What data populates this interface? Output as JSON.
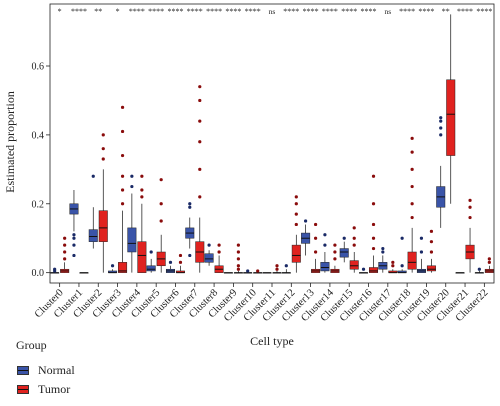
{
  "chart_data": {
    "type": "box",
    "xlabel": "Cell type",
    "ylabel": "Estimated proportion",
    "ylim": [
      -0.03,
      0.78
    ],
    "yticks": [
      "0.0",
      "0.2",
      "0.4",
      "0.6"
    ],
    "categories": [
      "Cluster0",
      "Cluster1",
      "Cluster2",
      "Cluster3",
      "Cluster4",
      "Cluster5",
      "Cluster6",
      "Cluster7",
      "Cluster8",
      "Cluster9",
      "Cluster10",
      "Cluster11",
      "Cluster12",
      "Cluster13",
      "Cluster14",
      "Cluster15",
      "Cluster16",
      "Cluster17",
      "Cluster18",
      "Cluster19",
      "Cluster20",
      "Cluster21",
      "Cluster22"
    ],
    "significance": [
      "*",
      "****",
      "**",
      "*",
      "****",
      "****",
      "****",
      "****",
      "****",
      "****",
      "****",
      "ns",
      "****",
      "****",
      "****",
      "****",
      "****",
      "ns",
      "****",
      "****",
      "**",
      "****",
      "****"
    ],
    "legend": {
      "title": "Group",
      "placement": "bottom-left"
    },
    "series": [
      {
        "name": "Normal",
        "color": "#3a54a8",
        "boxes": [
          {
            "min": 0.0,
            "q1": 0.0,
            "median": 0.0,
            "q3": 0.0,
            "max": 0.0,
            "outliers": [
              0.005,
              0.01
            ]
          },
          {
            "min": 0.12,
            "q1": 0.17,
            "median": 0.185,
            "q3": 0.2,
            "max": 0.24,
            "outliers": [
              0.05,
              0.08,
              0.1,
              0.11
            ]
          },
          {
            "min": 0.07,
            "q1": 0.09,
            "median": 0.105,
            "q3": 0.125,
            "max": 0.19,
            "outliers": [
              0.28
            ]
          },
          {
            "min": 0.0,
            "q1": 0.0,
            "median": 0.0,
            "q3": 0.005,
            "max": 0.01,
            "outliers": [
              0.02
            ]
          },
          {
            "min": 0.0,
            "q1": 0.06,
            "median": 0.085,
            "q3": 0.13,
            "max": 0.23,
            "outliers": [
              0.25,
              0.28
            ]
          },
          {
            "min": 0.0,
            "q1": 0.005,
            "median": 0.01,
            "q3": 0.02,
            "max": 0.04,
            "outliers": [
              0.06
            ]
          },
          {
            "min": 0.0,
            "q1": 0.0,
            "median": 0.005,
            "q3": 0.01,
            "max": 0.02,
            "outliers": [
              0.03
            ]
          },
          {
            "min": 0.07,
            "q1": 0.1,
            "median": 0.115,
            "q3": 0.13,
            "max": 0.16,
            "outliers": [
              0.05,
              0.19,
              0.2
            ]
          },
          {
            "min": 0.02,
            "q1": 0.03,
            "median": 0.04,
            "q3": 0.055,
            "max": 0.065,
            "outliers": [
              0.08
            ]
          },
          {
            "min": 0.0,
            "q1": 0.0,
            "median": 0.0,
            "q3": 0.0,
            "max": 0.0,
            "outliers": []
          },
          {
            "min": 0.0,
            "q1": 0.0,
            "median": 0.0,
            "q3": 0.0,
            "max": 0.0,
            "outliers": [
              0.005
            ]
          },
          {
            "min": 0.0,
            "q1": 0.0,
            "median": 0.0,
            "q3": 0.0,
            "max": 0.0,
            "outliers": []
          },
          {
            "min": 0.0,
            "q1": 0.0,
            "median": 0.0,
            "q3": 0.0,
            "max": 0.01,
            "outliers": [
              0.02
            ]
          },
          {
            "min": 0.05,
            "q1": 0.085,
            "median": 0.1,
            "q3": 0.115,
            "max": 0.14,
            "outliers": [
              0.15
            ]
          },
          {
            "min": 0.0,
            "q1": 0.005,
            "median": 0.015,
            "q3": 0.03,
            "max": 0.06,
            "outliers": [
              0.08,
              0.11
            ]
          },
          {
            "min": 0.03,
            "q1": 0.045,
            "median": 0.06,
            "q3": 0.07,
            "max": 0.09,
            "outliers": [
              0.1
            ]
          },
          {
            "min": 0.0,
            "q1": 0.0,
            "median": 0.0,
            "q3": 0.0,
            "max": 0.0,
            "outliers": [
              0.01
            ]
          },
          {
            "min": 0.0,
            "q1": 0.01,
            "median": 0.02,
            "q3": 0.03,
            "max": 0.05,
            "outliers": [
              0.07,
              0.06
            ]
          },
          {
            "min": 0.0,
            "q1": 0.0,
            "median": 0.0,
            "q3": 0.005,
            "max": 0.01,
            "outliers": [
              0.02,
              0.1
            ]
          },
          {
            "min": 0.0,
            "q1": 0.0,
            "median": 0.005,
            "q3": 0.01,
            "max": 0.04,
            "outliers": [
              0.06,
              0.1
            ]
          },
          {
            "min": 0.13,
            "q1": 0.19,
            "median": 0.22,
            "q3": 0.25,
            "max": 0.31,
            "outliers": [
              0.4,
              0.42,
              0.44,
              0.45
            ]
          },
          {
            "min": 0.0,
            "q1": 0.0,
            "median": 0.0,
            "q3": 0.0,
            "max": 0.0,
            "outliers": []
          },
          {
            "min": 0.0,
            "q1": 0.0,
            "median": 0.0,
            "q3": 0.0,
            "max": 0.005,
            "outliers": [
              0.01
            ]
          }
        ]
      },
      {
        "name": "Tumor",
        "color": "#e0221f",
        "boxes": [
          {
            "min": 0.0,
            "q1": 0.0,
            "median": 0.005,
            "q3": 0.01,
            "max": 0.03,
            "outliers": [
              0.04,
              0.06,
              0.08,
              0.1
            ]
          },
          {
            "min": 0.0,
            "q1": 0.0,
            "median": 0.0,
            "q3": 0.0,
            "max": 0.0,
            "outliers": []
          },
          {
            "min": 0.0,
            "q1": 0.09,
            "median": 0.13,
            "q3": 0.18,
            "max": 0.3,
            "outliers": [
              0.33,
              0.36,
              0.4
            ]
          },
          {
            "min": 0.0,
            "q1": 0.0,
            "median": 0.005,
            "q3": 0.03,
            "max": 0.18,
            "outliers": [
              0.2,
              0.24,
              0.28,
              0.34,
              0.41,
              0.48
            ]
          },
          {
            "min": 0.0,
            "q1": 0.0,
            "median": 0.05,
            "q3": 0.09,
            "max": 0.2,
            "outliers": [
              0.22,
              0.24,
              0.28
            ]
          },
          {
            "min": 0.0,
            "q1": 0.02,
            "median": 0.04,
            "q3": 0.06,
            "max": 0.11,
            "outliers": [
              0.15,
              0.2,
              0.27
            ]
          },
          {
            "min": 0.0,
            "q1": 0.0,
            "median": 0.0,
            "q3": 0.005,
            "max": 0.02,
            "outliers": [
              0.03,
              0.05
            ]
          },
          {
            "min": 0.0,
            "q1": 0.03,
            "median": 0.06,
            "q3": 0.09,
            "max": 0.16,
            "outliers": [
              0.22,
              0.3,
              0.38,
              0.44,
              0.5,
              0.54
            ]
          },
          {
            "min": 0.0,
            "q1": 0.0,
            "median": 0.01,
            "q3": 0.02,
            "max": 0.05,
            "outliers": [
              0.06,
              0.08
            ]
          },
          {
            "min": 0.0,
            "q1": 0.0,
            "median": 0.0,
            "q3": 0.0,
            "max": 0.005,
            "outliers": [
              0.01,
              0.02,
              0.04,
              0.06,
              0.08
            ]
          },
          {
            "min": 0.0,
            "q1": 0.0,
            "median": 0.0,
            "q3": 0.0,
            "max": 0.0,
            "outliers": [
              0.005
            ]
          },
          {
            "min": 0.0,
            "q1": 0.0,
            "median": 0.0,
            "q3": 0.0,
            "max": 0.005,
            "outliers": [
              0.01,
              0.02
            ]
          },
          {
            "min": 0.0,
            "q1": 0.03,
            "median": 0.05,
            "q3": 0.08,
            "max": 0.11,
            "outliers": [
              0.14,
              0.17,
              0.2,
              0.22
            ]
          },
          {
            "min": 0.0,
            "q1": 0.0,
            "median": 0.005,
            "q3": 0.01,
            "max": 0.04,
            "outliers": [
              0.06,
              0.1,
              0.14
            ]
          },
          {
            "min": 0.0,
            "q1": 0.0,
            "median": 0.005,
            "q3": 0.01,
            "max": 0.02,
            "outliers": [
              0.04,
              0.06,
              0.08
            ]
          },
          {
            "min": 0.0,
            "q1": 0.01,
            "median": 0.02,
            "q3": 0.035,
            "max": 0.06,
            "outliers": [
              0.08,
              0.1,
              0.13
            ]
          },
          {
            "min": 0.0,
            "q1": 0.0,
            "median": 0.005,
            "q3": 0.015,
            "max": 0.05,
            "outliers": [
              0.07,
              0.1,
              0.14,
              0.2,
              0.28
            ]
          },
          {
            "min": 0.0,
            "q1": 0.0,
            "median": 0.0,
            "q3": 0.005,
            "max": 0.01,
            "outliers": [
              0.02,
              0.03
            ]
          },
          {
            "min": 0.0,
            "q1": 0.01,
            "median": 0.03,
            "q3": 0.06,
            "max": 0.13,
            "outliers": [
              0.16,
              0.2,
              0.25,
              0.3,
              0.35,
              0.39
            ]
          },
          {
            "min": 0.0,
            "q1": 0.005,
            "median": 0.01,
            "q3": 0.02,
            "max": 0.04,
            "outliers": [
              0.06,
              0.09,
              0.12
            ]
          },
          {
            "min": 0.2,
            "q1": 0.34,
            "median": 0.46,
            "q3": 0.56,
            "max": 0.75,
            "outliers": []
          },
          {
            "min": 0.0,
            "q1": 0.04,
            "median": 0.06,
            "q3": 0.08,
            "max": 0.13,
            "outliers": [
              0.16,
              0.19,
              0.21
            ]
          },
          {
            "min": 0.0,
            "q1": 0.0,
            "median": 0.005,
            "q3": 0.01,
            "max": 0.02,
            "outliers": [
              0.03,
              0.04
            ]
          }
        ]
      }
    ]
  }
}
